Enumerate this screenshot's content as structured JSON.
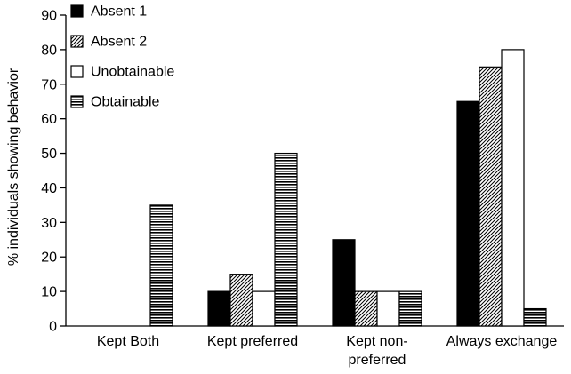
{
  "chart_data": {
    "type": "bar",
    "categories": [
      "Kept Both",
      "Kept preferred",
      "Kept non-\npreferred",
      "Always exchange"
    ],
    "series": [
      {
        "name": "Absent 1",
        "values": [
          0,
          10,
          25,
          65
        ],
        "pattern": "solid-black"
      },
      {
        "name": "Absent 2",
        "values": [
          0,
          15,
          10,
          75
        ],
        "pattern": "diagonal-hatch"
      },
      {
        "name": "Unobtainable",
        "values": [
          0,
          10,
          10,
          80
        ],
        "pattern": "white"
      },
      {
        "name": "Obtainable",
        "values": [
          35,
          50,
          10,
          5
        ],
        "pattern": "horizontal-lines"
      }
    ],
    "title": "",
    "xlabel": "",
    "ylabel": "% individuals showing behavior",
    "ylim": [
      0,
      90
    ],
    "yticks": [
      0,
      10,
      20,
      30,
      40,
      50,
      60,
      70,
      80,
      90
    ],
    "legend_position": "top-left",
    "grid": false
  }
}
